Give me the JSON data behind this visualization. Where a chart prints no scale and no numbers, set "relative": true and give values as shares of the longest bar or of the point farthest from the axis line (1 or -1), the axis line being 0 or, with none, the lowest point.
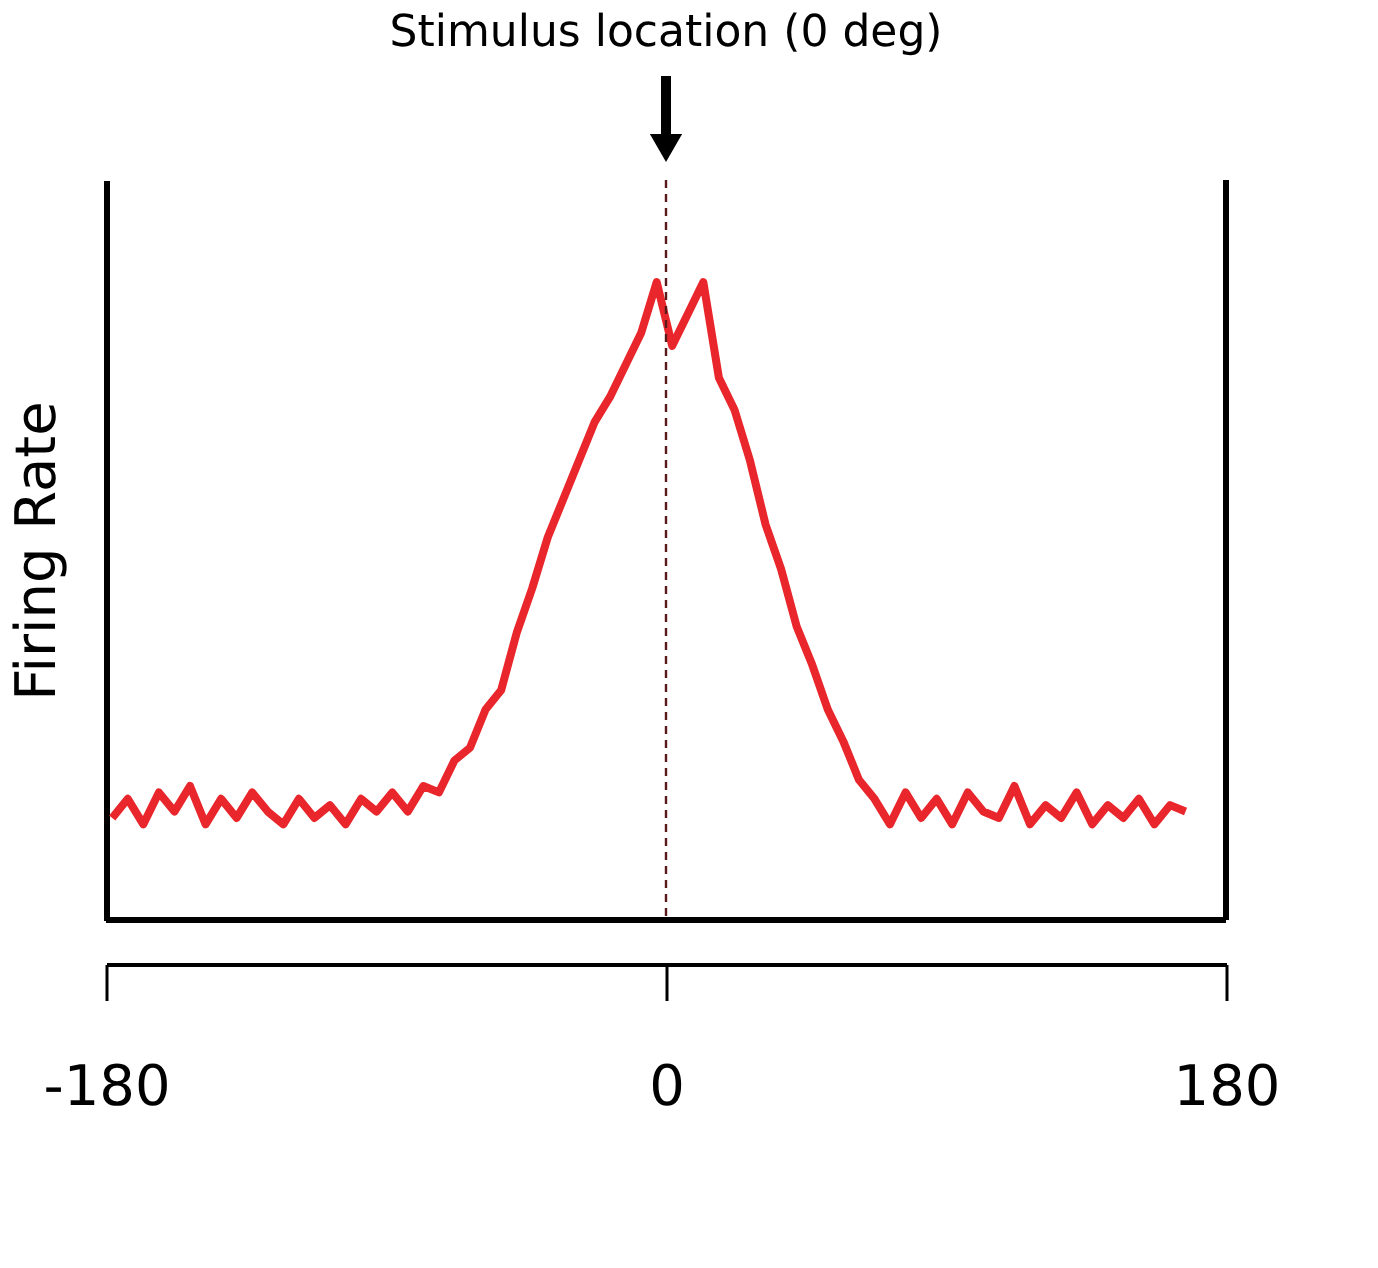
{
  "chart_data": {
    "type": "line",
    "relative": true,
    "ylabel": "Firing Rate",
    "x": [
      -178,
      -173,
      -168,
      -163,
      -158,
      -153,
      -148,
      -143,
      -138,
      -133,
      -128,
      -123,
      -118,
      -113,
      -108,
      -103,
      -98,
      -93,
      -88,
      -83,
      -78,
      -73,
      -68,
      -63,
      -58,
      -53,
      -48,
      -43,
      -38,
      -33,
      -28,
      -23,
      -18,
      -13,
      -8,
      -3,
      2,
      7,
      12,
      17,
      22,
      27,
      32,
      37,
      42,
      47,
      52,
      57,
      62,
      67,
      72,
      77,
      82,
      87,
      92,
      97,
      102,
      107,
      112,
      117,
      122,
      127,
      132,
      137,
      142,
      147,
      152,
      157,
      162,
      167
    ],
    "series": [
      {
        "color": "#e8262b",
        "values": [
          0.16,
          0.19,
          0.15,
          0.2,
          0.17,
          0.21,
          0.15,
          0.19,
          0.16,
          0.2,
          0.17,
          0.15,
          0.19,
          0.16,
          0.18,
          0.15,
          0.19,
          0.17,
          0.2,
          0.17,
          0.21,
          0.2,
          0.25,
          0.27,
          0.33,
          0.36,
          0.45,
          0.52,
          0.6,
          0.66,
          0.72,
          0.78,
          0.82,
          0.87,
          0.92,
          1,
          0.9,
          0.95,
          1,
          0.85,
          0.8,
          0.72,
          0.62,
          0.55,
          0.46,
          0.4,
          0.33,
          0.28,
          0.22,
          0.19,
          0.15,
          0.2,
          0.16,
          0.19,
          0.15,
          0.2,
          0.17,
          0.16,
          0.21,
          0.15,
          0.18,
          0.16,
          0.2,
          0.15,
          0.18,
          0.16,
          0.19,
          0.15,
          0.18,
          0.17
        ]
      }
    ],
    "xlim": [
      -180,
      180
    ],
    "xticks": [
      -180,
      0,
      180
    ],
    "tick_labels": "x",
    "line_style": "solid",
    "annotations": [
      "Stimulus location (0 deg)"
    ],
    "ref_lines": [
      {
        "axis": "x",
        "value": 0,
        "color": "#5a1a1a",
        "line_style": "dashed"
      }
    ]
  }
}
